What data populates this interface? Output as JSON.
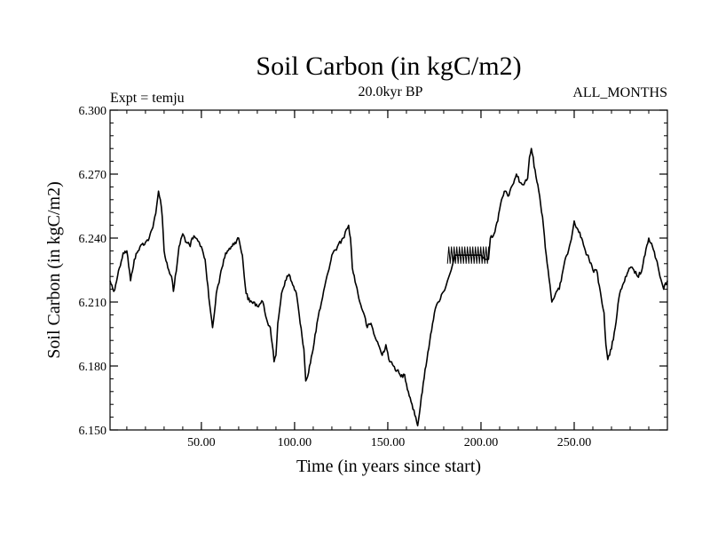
{
  "chart_data": {
    "type": "line",
    "title": "Soil Carbon (in kgC/m2)",
    "subtitle_left": "Expt = temju",
    "subtitle_center": "20.0kyr BP",
    "subtitle_right": "ALL_MONTHS",
    "xlabel": "Time (in years since start)",
    "ylabel": "Soil Carbon (in kgC/m2)",
    "xlim": [
      1,
      300
    ],
    "ylim": [
      6.15,
      6.3
    ],
    "xticks": [
      50,
      100,
      150,
      200,
      250
    ],
    "xtick_labels": [
      "50.00",
      "100.00",
      "150.00",
      "200.00",
      "250.00"
    ],
    "yticks": [
      6.15,
      6.18,
      6.21,
      6.24,
      6.27,
      6.3
    ],
    "ytick_labels": [
      "6.150",
      "6.180",
      "6.210",
      "6.240",
      "6.270",
      "6.300"
    ],
    "grid": false,
    "line_color": "#000000",
    "series": [
      {
        "name": "Soil Carbon",
        "x": [
          1,
          3,
          5,
          6,
          8,
          10,
          12,
          14,
          16,
          18,
          20,
          22,
          24,
          26,
          27,
          28,
          29,
          30,
          32,
          34,
          35,
          37,
          38,
          40,
          42,
          44,
          45,
          47,
          50,
          52,
          54,
          55,
          56,
          57,
          58,
          60,
          62,
          64,
          66,
          68,
          70,
          72,
          73,
          74,
          76,
          78,
          80,
          83,
          85,
          87,
          89,
          90,
          91,
          93,
          95,
          97,
          99,
          101,
          103,
          105,
          106,
          107,
          108,
          110,
          112,
          115,
          118,
          120,
          123,
          126,
          129,
          130,
          131,
          133,
          135,
          137,
          139,
          141,
          143,
          145,
          147,
          149,
          151,
          153,
          155,
          157,
          159,
          161,
          163,
          165,
          166,
          167,
          169,
          171,
          173,
          175,
          177,
          180,
          182,
          184,
          186,
          188,
          190,
          192,
          194,
          196,
          198,
          200,
          202,
          204,
          205,
          207,
          209,
          211,
          213,
          215,
          217,
          219,
          221,
          223,
          225,
          226,
          227,
          229,
          231,
          233,
          235,
          237,
          238,
          240,
          242,
          244,
          246,
          248,
          250,
          252,
          254,
          256,
          258,
          260,
          262,
          264,
          266,
          267,
          268,
          270,
          272,
          274,
          276,
          278,
          280,
          282,
          284,
          286,
          288,
          290,
          292,
          294,
          296,
          298,
          300
        ],
        "y": [
          6.22,
          6.215,
          6.222,
          6.226,
          6.233,
          6.234,
          6.22,
          6.23,
          6.234,
          6.237,
          6.238,
          6.24,
          6.245,
          6.255,
          6.262,
          6.258,
          6.25,
          6.234,
          6.226,
          6.222,
          6.215,
          6.228,
          6.236,
          6.242,
          6.238,
          6.236,
          6.24,
          6.24,
          6.236,
          6.23,
          6.212,
          6.205,
          6.198,
          6.205,
          6.214,
          6.222,
          6.23,
          6.234,
          6.236,
          6.238,
          6.24,
          6.232,
          6.222,
          6.214,
          6.21,
          6.21,
          6.208,
          6.21,
          6.202,
          6.198,
          6.182,
          6.185,
          6.2,
          6.214,
          6.22,
          6.223,
          6.218,
          6.214,
          6.2,
          6.188,
          6.173,
          6.175,
          6.18,
          6.188,
          6.2,
          6.212,
          6.224,
          6.232,
          6.236,
          6.24,
          6.246,
          6.24,
          6.226,
          6.218,
          6.21,
          6.205,
          6.198,
          6.2,
          6.194,
          6.19,
          6.185,
          6.19,
          6.182,
          6.18,
          6.178,
          6.175,
          6.176,
          6.168,
          6.162,
          6.156,
          6.152,
          6.158,
          6.172,
          6.183,
          6.195,
          6.205,
          6.21,
          6.215,
          6.22,
          6.225,
          6.232,
          6.232,
          6.232,
          6.232,
          6.232,
          6.232,
          6.232,
          6.232,
          6.23,
          6.23,
          6.24,
          6.242,
          6.248,
          6.258,
          6.262,
          6.26,
          6.265,
          6.27,
          6.266,
          6.265,
          6.268,
          6.278,
          6.282,
          6.272,
          6.262,
          6.25,
          6.232,
          6.218,
          6.21,
          6.214,
          6.216,
          6.225,
          6.232,
          6.238,
          6.248,
          6.244,
          6.24,
          6.234,
          6.23,
          6.225,
          6.225,
          6.215,
          6.205,
          6.19,
          6.183,
          6.188,
          6.198,
          6.212,
          6.218,
          6.222,
          6.226,
          6.225,
          6.222,
          6.224,
          6.232,
          6.24,
          6.236,
          6.23,
          6.222,
          6.216,
          6.22
        ]
      }
    ],
    "band": {
      "name": "oscillation-band",
      "x_start": 182,
      "x_end": 204,
      "y_low": 6.228,
      "y_high": 6.236
    }
  }
}
